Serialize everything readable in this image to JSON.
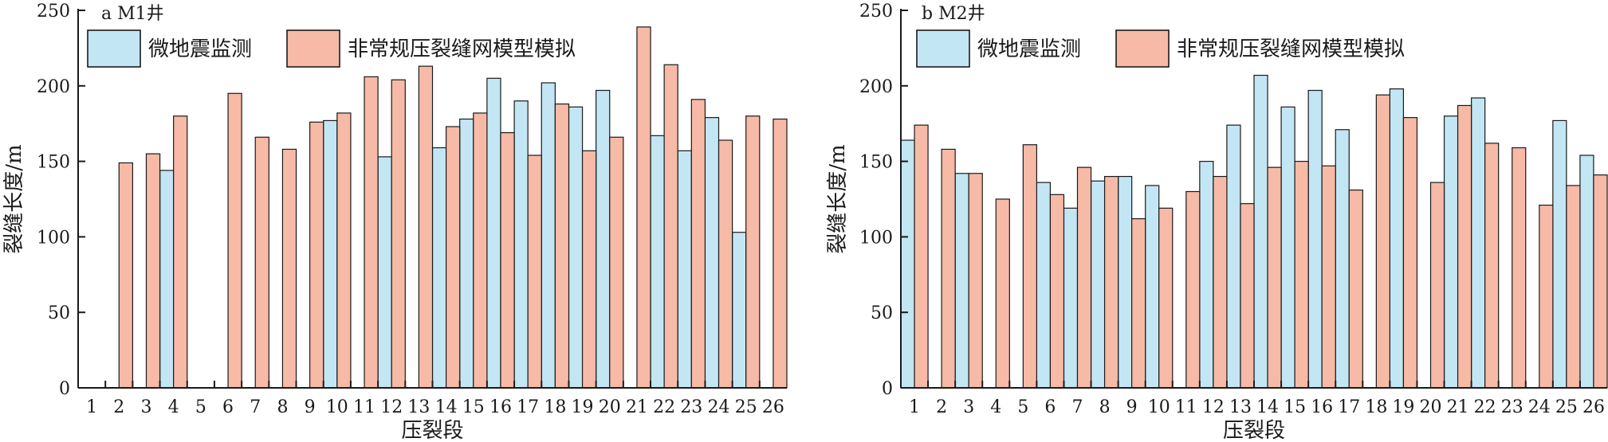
{
  "colors": {
    "microseismic": "#c3e6f4",
    "model": "#f6baa7",
    "stroke": "#1a1a1a"
  },
  "chart_data": [
    {
      "type": "bar",
      "label": "a M1井",
      "xlabel": "压裂段",
      "ylabel": "裂缝长度/m",
      "ylim": [
        0,
        250
      ],
      "yticks": [
        0,
        50,
        100,
        150,
        200,
        250
      ],
      "legend_position": "top-left",
      "categories": [
        "1",
        "2",
        "3",
        "4",
        "5",
        "6",
        "7",
        "8",
        "9",
        "10",
        "11",
        "12",
        "13",
        "14",
        "15",
        "16",
        "17",
        "18",
        "19",
        "20",
        "21",
        "22",
        "23",
        "24",
        "25",
        "26"
      ],
      "series": [
        {
          "name": "微地震监测",
          "values": [
            null,
            null,
            null,
            144,
            null,
            null,
            null,
            null,
            null,
            177,
            null,
            153,
            null,
            159,
            178,
            205,
            190,
            202,
            186,
            197,
            null,
            167,
            157,
            179,
            103,
            null
          ]
        },
        {
          "name": "非常规压裂缝网模型模拟",
          "values": [
            null,
            149,
            155,
            180,
            null,
            195,
            166,
            158,
            176,
            182,
            206,
            204,
            213,
            173,
            182,
            169,
            154,
            188,
            157,
            166,
            239,
            214,
            191,
            164,
            180,
            178
          ]
        }
      ]
    },
    {
      "type": "bar",
      "label": "b M2井",
      "xlabel": "压裂段",
      "ylabel": "裂缝长度/m",
      "ylim": [
        0,
        250
      ],
      "yticks": [
        0,
        50,
        100,
        150,
        200,
        250
      ],
      "legend_position": "top-left",
      "categories": [
        "1",
        "2",
        "3",
        "4",
        "5",
        "6",
        "7",
        "8",
        "9",
        "10",
        "11",
        "12",
        "13",
        "14",
        "15",
        "16",
        "17",
        "18",
        "19",
        "20",
        "21",
        "22",
        "23",
        "24",
        "25",
        "26"
      ],
      "series": [
        {
          "name": "微地震监测",
          "values": [
            164,
            null,
            142,
            null,
            null,
            136,
            119,
            137,
            140,
            134,
            null,
            150,
            174,
            207,
            186,
            197,
            171,
            null,
            198,
            null,
            180,
            192,
            null,
            null,
            177,
            154
          ]
        },
        {
          "name": "非常规压裂缝网模型模拟",
          "values": [
            174,
            158,
            142,
            125,
            161,
            128,
            146,
            140,
            112,
            119,
            130,
            140,
            122,
            146,
            150,
            147,
            131,
            194,
            179,
            136,
            187,
            162,
            159,
            121,
            134,
            141
          ]
        }
      ]
    }
  ]
}
